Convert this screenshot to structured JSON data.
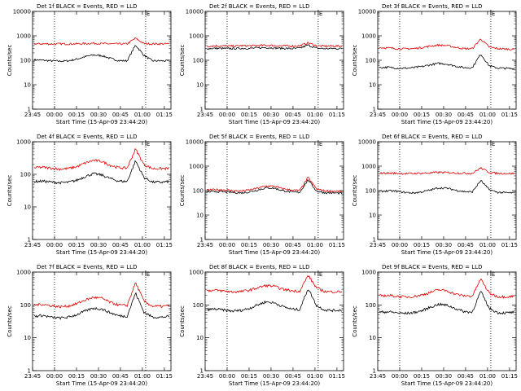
{
  "colors": {
    "events": "#000000",
    "lld": "#e00000",
    "background": "#ffffff",
    "axes": "#000000"
  },
  "chart_data": [
    {
      "type": "line",
      "title": "Det 1f BLACK = Events, RED = LLD",
      "ylabel": "Counts/sec",
      "xlabel": "Start Time (15-Apr-09 23:44:20)",
      "yscale": "log",
      "ylim": [
        1,
        10000
      ],
      "yticks": [
        "1",
        "10",
        "100",
        "1000",
        "10000"
      ],
      "xticks": [
        "23:45",
        "00:00",
        "00:15",
        "00:30",
        "00:45",
        "01:00",
        "01:15"
      ],
      "marker_top": "E",
      "series": [
        {
          "name": "Events",
          "color": "#000000",
          "values": [
            105,
            100,
            95,
            92,
            95,
            110,
            140,
            165,
            155,
            120,
            97,
            95,
            420,
            160,
            95,
            95,
            95
          ]
        },
        {
          "name": "LLD",
          "color": "#e00000",
          "values": [
            470,
            470,
            465,
            470,
            468,
            470,
            480,
            500,
            480,
            470,
            470,
            470,
            800,
            480,
            470,
            470,
            470
          ]
        }
      ]
    },
    {
      "type": "line",
      "title": "Det 2f BLACK = Events, RED = LLD",
      "ylabel": "Counts/sec",
      "xlabel": "Start Time (15-Apr-09 23:44:20)",
      "yscale": "log",
      "ylim": [
        1,
        10000
      ],
      "yticks": [
        "1",
        "10",
        "100",
        "1000",
        "10000"
      ],
      "xticks": [
        "23:45",
        "00:00",
        "00:15",
        "00:30",
        "00:45",
        "01:00",
        "01:15"
      ],
      "marker_top": "E",
      "series": [
        {
          "name": "Events",
          "color": "#000000",
          "values": [
            300,
            310,
            305,
            300,
            310,
            305,
            320,
            330,
            320,
            310,
            300,
            310,
            420,
            310,
            300,
            305,
            300
          ]
        },
        {
          "name": "LLD",
          "color": "#e00000",
          "values": [
            380,
            390,
            385,
            380,
            395,
            390,
            400,
            410,
            400,
            390,
            385,
            390,
            520,
            390,
            380,
            385,
            380
          ]
        }
      ]
    },
    {
      "type": "line",
      "title": "Det 3f BLACK = Events, RED = LLD",
      "ylabel": "Counts/sec",
      "xlabel": "Start Time (15-Apr-09 23:44:20)",
      "yscale": "log",
      "ylim": [
        1,
        10000
      ],
      "yticks": [
        "1",
        "10",
        "100",
        "1000",
        "10000"
      ],
      "xticks": [
        "23:45",
        "00:00",
        "00:15",
        "00:30",
        "00:45",
        "01:00",
        "01:15"
      ],
      "marker_top": "E",
      "series": [
        {
          "name": "Events",
          "color": "#000000",
          "values": [
            50,
            52,
            48,
            47,
            50,
            55,
            65,
            75,
            70,
            58,
            50,
            50,
            180,
            60,
            48,
            47,
            45
          ]
        },
        {
          "name": "LLD",
          "color": "#e00000",
          "values": [
            330,
            320,
            300,
            295,
            300,
            330,
            380,
            420,
            400,
            340,
            300,
            300,
            750,
            350,
            300,
            290,
            280
          ]
        }
      ]
    },
    {
      "type": "line",
      "title": "Det 4f BLACK = Events, RED = LLD",
      "ylabel": "Counts/sec",
      "xlabel": "Start Time (15-Apr-09 23:44:20)",
      "yscale": "log",
      "ylim": [
        1,
        1000
      ],
      "yticks": [
        "1",
        "10",
        "100",
        "1000"
      ],
      "xticks": [
        "23:45",
        "00:00",
        "00:15",
        "00:30",
        "00:45",
        "01:00",
        "01:15"
      ],
      "marker_top": "E",
      "series": [
        {
          "name": "Events",
          "color": "#000000",
          "values": [
            60,
            62,
            58,
            55,
            57,
            65,
            85,
            105,
            95,
            75,
            62,
            60,
            260,
            80,
            58,
            57,
            60
          ]
        },
        {
          "name": "LLD",
          "color": "#e00000",
          "values": [
            160,
            165,
            155,
            145,
            150,
            170,
            220,
            270,
            250,
            190,
            160,
            155,
            600,
            200,
            150,
            150,
            150
          ]
        }
      ]
    },
    {
      "type": "line",
      "title": "Det 5f BLACK = Events, RED = LLD",
      "ylabel": "Counts/sec",
      "xlabel": "Start Time (15-Apr-09 23:44:20)",
      "yscale": "log",
      "ylim": [
        1,
        10000
      ],
      "yticks": [
        "1",
        "10",
        "100",
        "1000",
        "10000"
      ],
      "xticks": [
        "23:45",
        "00:00",
        "00:15",
        "00:30",
        "00:45",
        "01:00",
        "01:15"
      ],
      "marker_top": "E",
      "series": [
        {
          "name": "Events",
          "color": "#000000",
          "values": [
            88,
            92,
            90,
            85,
            80,
            88,
            105,
            130,
            125,
            100,
            88,
            85,
            280,
            95,
            82,
            80,
            78
          ]
        },
        {
          "name": "LLD",
          "color": "#e00000",
          "values": [
            105,
            110,
            108,
            100,
            95,
            105,
            125,
            155,
            150,
            120,
            105,
            100,
            350,
            115,
            98,
            95,
            92
          ]
        }
      ]
    },
    {
      "type": "line",
      "title": "Det 6f BLACK = Events, RED = LLD",
      "ylabel": "Counts/sec",
      "xlabel": "Start Time (15-Apr-09 23:44:20)",
      "yscale": "log",
      "ylim": [
        1,
        10000
      ],
      "yticks": [
        "1",
        "10",
        "100",
        "1000",
        "10000"
      ],
      "xticks": [
        "23:45",
        "00:00",
        "00:15",
        "00:30",
        "00:45",
        "01:00",
        "01:15"
      ],
      "marker_top": "E",
      "series": [
        {
          "name": "Events",
          "color": "#000000",
          "values": [
            92,
            98,
            95,
            85,
            80,
            88,
            105,
            130,
            125,
            105,
            92,
            88,
            260,
            110,
            85,
            82,
            80
          ]
        },
        {
          "name": "LLD",
          "color": "#e00000",
          "values": [
            520,
            520,
            510,
            500,
            505,
            515,
            530,
            560,
            550,
            530,
            515,
            510,
            850,
            560,
            510,
            505,
            500
          ]
        }
      ]
    },
    {
      "type": "line",
      "title": "Det 7f BLACK = Events, RED = LLD",
      "ylabel": "Counts/sec",
      "xlabel": "Start Time (15-Apr-09 23:44:20)",
      "yscale": "log",
      "ylim": [
        1,
        1000
      ],
      "yticks": [
        "1",
        "10",
        "100",
        "1000"
      ],
      "xticks": [
        "23:45",
        "00:00",
        "00:15",
        "00:30",
        "00:45",
        "01:00",
        "01:15"
      ],
      "marker_top": "E",
      "series": [
        {
          "name": "Events",
          "color": "#000000",
          "values": [
            45,
            48,
            42,
            40,
            42,
            50,
            65,
            80,
            75,
            58,
            47,
            45,
            230,
            60,
            43,
            42,
            45
          ]
        },
        {
          "name": "LLD",
          "color": "#e00000",
          "values": [
            100,
            105,
            95,
            88,
            92,
            108,
            140,
            170,
            160,
            120,
            100,
            95,
            480,
            130,
            92,
            90,
            95
          ]
        }
      ]
    },
    {
      "type": "line",
      "title": "Det 8f BLACK = Events, RED = LLD",
      "ylabel": "Counts/sec",
      "xlabel": "Start Time (15-Apr-09 23:44:20)",
      "yscale": "log",
      "ylim": [
        1,
        1000
      ],
      "yticks": [
        "1",
        "10",
        "100",
        "1000"
      ],
      "xticks": [
        "23:45",
        "00:00",
        "00:15",
        "00:30",
        "00:45",
        "01:00",
        "01:15"
      ],
      "marker_top": "E",
      "series": [
        {
          "name": "Events",
          "color": "#000000",
          "values": [
            72,
            75,
            70,
            65,
            68,
            78,
            100,
            125,
            115,
            90,
            75,
            72,
            320,
            95,
            70,
            68,
            70
          ]
        },
        {
          "name": "LLD",
          "color": "#e00000",
          "values": [
            270,
            280,
            265,
            250,
            255,
            280,
            330,
            390,
            370,
            300,
            270,
            260,
            800,
            330,
            255,
            250,
            255
          ]
        }
      ]
    },
    {
      "type": "line",
      "title": "Det 9f BLACK = Events, RED = LLD",
      "ylabel": "Counts/sec",
      "xlabel": "Start Time (15-Apr-09 23:44:20)",
      "yscale": "log",
      "ylim": [
        1,
        1000
      ],
      "yticks": [
        "1",
        "10",
        "100",
        "1000"
      ],
      "xticks": [
        "23:45",
        "00:00",
        "00:15",
        "00:30",
        "00:45",
        "01:00",
        "01:15"
      ],
      "marker_top": "E",
      "series": [
        {
          "name": "Events",
          "color": "#000000",
          "values": [
            60,
            62,
            58,
            55,
            58,
            66,
            85,
            105,
            98,
            78,
            63,
            60,
            260,
            80,
            58,
            57,
            60
          ]
        },
        {
          "name": "LLD",
          "color": "#e00000",
          "values": [
            190,
            195,
            185,
            175,
            180,
            200,
            240,
            290,
            270,
            215,
            190,
            185,
            620,
            230,
            180,
            178,
            185
          ]
        }
      ]
    }
  ]
}
